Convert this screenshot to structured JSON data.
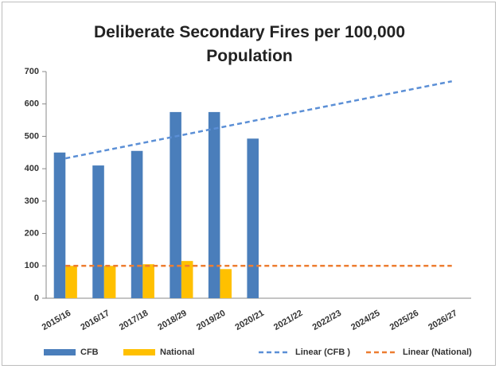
{
  "chart_data": {
    "type": "bar",
    "title": "Deliberate Secondary Fires per 100,000 Population",
    "categories": [
      "2015/16",
      "2016/17",
      "2017/18",
      "2018/29",
      "2019/20",
      "2020/21",
      "2021/22",
      "2022/23",
      "2024/25",
      "2025/26",
      "2026/27"
    ],
    "series": [
      {
        "name": "CFB",
        "color": "#4a7ebb",
        "values": [
          450,
          410,
          455,
          575,
          575,
          493,
          null,
          null,
          null,
          null,
          null
        ]
      },
      {
        "name": "National",
        "color": "#ffc000",
        "values": [
          100,
          100,
          105,
          115,
          90,
          null,
          null,
          null,
          null,
          null,
          null
        ]
      }
    ],
    "trendlines": [
      {
        "name": "Linear (CFB )",
        "color": "#5b8fd6",
        "from": 432,
        "to": 670
      },
      {
        "name": "Linear (National)",
        "color": "#ed7d31",
        "from": 100,
        "to": 100
      }
    ],
    "ylim": [
      0,
      700
    ],
    "yticks": [
      0,
      100,
      200,
      300,
      400,
      500,
      600,
      700
    ],
    "grid": false
  }
}
